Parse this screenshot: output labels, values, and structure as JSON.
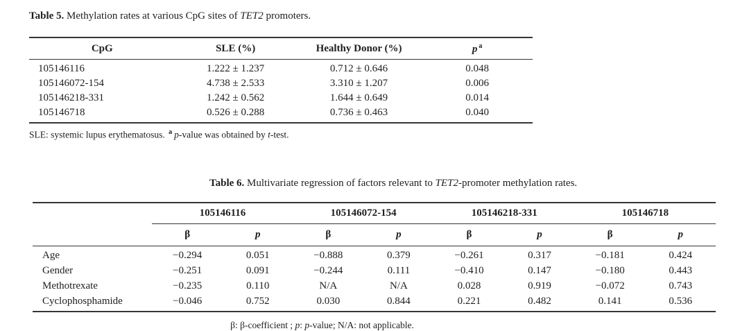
{
  "table5": {
    "caption_label": "Table 5.",
    "caption_text_1": " Methylation rates at various CpG sites of ",
    "caption_gene": "TET2",
    "caption_text_2": " promoters.",
    "headers": {
      "cpg": "CpG",
      "sle": "SLE (%)",
      "healthy": "Healthy Donor (%)",
      "p": "p",
      "p_sup": "a"
    },
    "rows": [
      {
        "cpg": "105146116",
        "sle": "1.222 ± 1.237",
        "healthy": "0.712 ± 0.646",
        "p": "0.048"
      },
      {
        "cpg": "105146072-154",
        "sle": "4.738 ± 2.533",
        "healthy": "3.310 ± 1.207",
        "p": "0.006"
      },
      {
        "cpg": "105146218-331",
        "sle": "1.242 ± 0.562",
        "healthy": "1.644 ± 0.649",
        "p": "0.014"
      },
      {
        "cpg": "105146718",
        "sle": "0.526 ± 0.288",
        "healthy": "0.736 ± 0.463",
        "p": "0.040"
      }
    ],
    "footnote": {
      "part1": "SLE: systemic lupus erythematosus.",
      "sup": "a",
      "italic1": "p",
      "part2": "-value was obtained by ",
      "italic2": "t",
      "part3": "-test."
    }
  },
  "table6": {
    "caption_label": "Table 6.",
    "caption_text_1": " Multivariate regression of factors relevant to ",
    "caption_gene": "TET2",
    "caption_text_2": "-promoter methylation rates.",
    "group_headers": [
      "105146116",
      "105146072-154",
      "105146218-331",
      "105146718"
    ],
    "sub_headers": {
      "beta": "β",
      "p": "p"
    },
    "rows": [
      {
        "label": "Age",
        "values": [
          "−0.294",
          "0.051",
          "−0.888",
          "0.379",
          "−0.261",
          "0.317",
          "−0.181",
          "0.424"
        ]
      },
      {
        "label": "Gender",
        "values": [
          "−0.251",
          "0.091",
          "−0.244",
          "0.111",
          "−0.410",
          "0.147",
          "−0.180",
          "0.443"
        ]
      },
      {
        "label": "Methotrexate",
        "values": [
          "−0.235",
          "0.110",
          "N/A",
          "N/A",
          "0.028",
          "0.919",
          "−0.072",
          "0.743"
        ]
      },
      {
        "label": "Cyclophosphamide",
        "values": [
          "−0.046",
          "0.752",
          "0.030",
          "0.844",
          "0.221",
          "0.482",
          "0.141",
          "0.536"
        ]
      }
    ],
    "footnote": {
      "beta1": "β",
      "part1": ": ",
      "beta2": "β",
      "part2": "-coefficient ; ",
      "p1": "p",
      "part3": ": ",
      "p2": "p",
      "part4": "-value; N/A: not applicable."
    }
  }
}
